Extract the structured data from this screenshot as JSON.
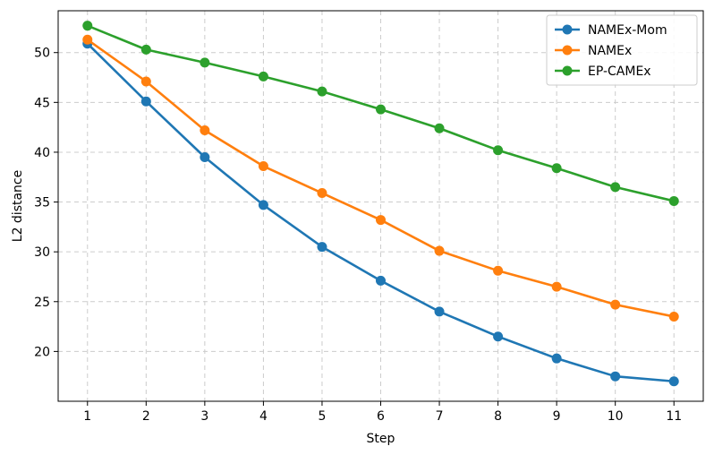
{
  "chart_data": {
    "type": "line",
    "title": "",
    "xlabel": "Step",
    "ylabel": "L2 distance",
    "x": [
      1,
      2,
      3,
      4,
      5,
      6,
      7,
      8,
      9,
      10,
      11
    ],
    "xlim": [
      0.5,
      11.5
    ],
    "ylim": [
      15.0,
      54.2
    ],
    "yticks": [
      20,
      25,
      30,
      35,
      40,
      45,
      50
    ],
    "grid": true,
    "grid_style": "dashed",
    "legend_position": "top-right",
    "series": [
      {
        "name": "NAMEx-Mom",
        "color": "#1f77b4",
        "marker": "circle",
        "values": [
          50.9,
          45.1,
          39.5,
          34.7,
          30.5,
          27.1,
          24.0,
          21.5,
          19.3,
          17.5,
          17.0
        ]
      },
      {
        "name": "NAMEx",
        "color": "#ff7f0e",
        "marker": "circle",
        "values": [
          51.3,
          47.1,
          42.2,
          38.6,
          35.9,
          33.2,
          30.1,
          28.1,
          26.5,
          24.7,
          23.5
        ]
      },
      {
        "name": "EP-CAMEx",
        "color": "#2ca02c",
        "marker": "circle",
        "values": [
          52.7,
          50.3,
          49.0,
          47.6,
          46.1,
          44.3,
          42.4,
          40.2,
          38.4,
          36.5,
          35.1
        ]
      }
    ]
  }
}
